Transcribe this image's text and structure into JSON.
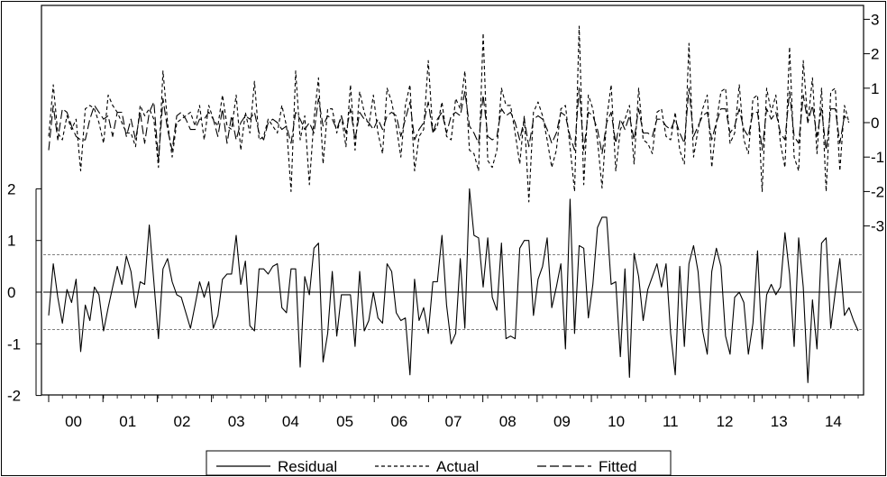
{
  "chart_data": {
    "type": "line",
    "x_tick_labels": [
      "00",
      "01",
      "02",
      "03",
      "04",
      "05",
      "06",
      "07",
      "08",
      "09",
      "10",
      "11",
      "12",
      "13",
      "14"
    ],
    "left_axis": {
      "ticks": [
        -2,
        -1,
        0,
        1,
        2
      ],
      "tick_labels": [
        "-2",
        "-1",
        "0",
        "1",
        "2"
      ],
      "range": [
        -2,
        2.6
      ]
    },
    "right_axis": {
      "ticks": [
        -3,
        -2,
        -1,
        0,
        1,
        2,
        3
      ],
      "tick_labels": [
        "-3",
        "-2",
        "-1",
        "0",
        "1",
        "2",
        "3"
      ],
      "range": [
        -3.5,
        3.0
      ]
    },
    "residual_band": [
      -0.72,
      0.72
    ],
    "legend": {
      "position": "bottom-center",
      "entries": [
        "Residual",
        "Actual",
        "Fitted"
      ]
    },
    "series": [
      {
        "name": "Residual",
        "axis": "left",
        "style": "solid",
        "values": [
          -0.45,
          0.55,
          -0.1,
          -0.6,
          0.05,
          -0.2,
          0.25,
          -1.15,
          -0.25,
          -0.55,
          0.1,
          -0.05,
          -0.75,
          -0.3,
          0.1,
          0.5,
          0.15,
          0.7,
          0.4,
          -0.3,
          0.2,
          0.15,
          1.3,
          0.2,
          -0.9,
          0.45,
          0.65,
          0.2,
          -0.05,
          -0.1,
          -0.4,
          -0.7,
          -0.25,
          0.2,
          -0.1,
          0.2,
          -0.7,
          -0.45,
          0.25,
          0.35,
          0.35,
          1.1,
          0.15,
          0.6,
          -0.65,
          -0.75,
          0.45,
          0.45,
          0.35,
          0.5,
          0.55,
          -0.3,
          -0.4,
          0.45,
          0.45,
          -1.45,
          0.3,
          -0.05,
          0.85,
          0.95,
          -1.35,
          -0.8,
          0.4,
          -0.85,
          -0.05,
          -0.05,
          -0.05,
          -1.05,
          0.4,
          -0.75,
          -0.55,
          0.0,
          -0.5,
          -0.6,
          0.55,
          0.4,
          -0.4,
          -0.55,
          -0.5,
          -1.6,
          0.25,
          -0.55,
          -0.3,
          -0.8,
          0.2,
          0.2,
          1.1,
          -0.25,
          -1.0,
          -0.8,
          0.65,
          -0.7,
          2.0,
          1.1,
          1.05,
          0.1,
          1.05,
          -0.1,
          -0.35,
          0.95,
          -0.9,
          -0.85,
          -0.9,
          0.85,
          1.0,
          1.0,
          -0.45,
          0.25,
          0.5,
          1.05,
          -0.3,
          0.1,
          0.55,
          -1.1,
          1.8,
          -0.8,
          0.9,
          0.85,
          -0.5,
          0.15,
          1.25,
          1.45,
          1.45,
          0.15,
          0.2,
          -1.25,
          0.45,
          -1.65,
          0.75,
          0.3,
          -0.55,
          0.05,
          0.3,
          0.55,
          0.1,
          0.55,
          -0.8,
          -1.6,
          0.5,
          -1.05,
          0.55,
          0.9,
          0.4,
          -0.75,
          -1.2,
          0.4,
          0.85,
          0.5,
          -0.85,
          -1.2,
          -0.1,
          0.0,
          -0.2,
          -1.2,
          -0.6,
          0.8,
          -1.1,
          -0.05,
          0.15,
          -0.05,
          0.1,
          1.15,
          0.35,
          -1.05,
          1.05,
          0.1,
          -1.75,
          -0.15,
          -1.1,
          0.95,
          1.05,
          -0.7,
          0.0,
          0.65,
          -0.45,
          -0.3,
          -0.55,
          -0.75
        ]
      },
      {
        "name": "Actual",
        "axis": "right",
        "style": "short-dash",
        "values": [
          -0.4,
          1.1,
          -0.3,
          -0.5,
          0.2,
          -0.2,
          0.1,
          -1.4,
          0.4,
          0.5,
          0.4,
          0.0,
          -0.6,
          0.8,
          0.5,
          0.3,
          0.0,
          -0.3,
          -0.3,
          -0.7,
          0.5,
          0.2,
          0.4,
          0.1,
          -1.3,
          1.5,
          0.0,
          -1.0,
          0.0,
          0.1,
          0.2,
          0.3,
          -0.1,
          0.5,
          -0.5,
          0.5,
          0.1,
          -0.1,
          0.8,
          -0.1,
          -0.2,
          0.8,
          -0.8,
          0.3,
          -0.3,
          1.2,
          -0.5,
          -0.4,
          0.1,
          -0.1,
          -0.3,
          0.5,
          -0.1,
          -2.0,
          1.5,
          -0.5,
          0.2,
          -1.8,
          0.1,
          1.3,
          -1.2,
          0.4,
          0.4,
          -0.3,
          0.2,
          -0.7,
          1.1,
          -0.8,
          0.9,
          0.3,
          -0.1,
          0.8,
          -0.3,
          -0.9,
          1.0,
          0.6,
          -0.1,
          -1.0,
          0.5,
          1.1,
          -1.4,
          -0.4,
          -0.2,
          1.8,
          -0.3,
          -0.1,
          0.6,
          -0.4,
          -0.5,
          0.7,
          0.4,
          1.5,
          -0.8,
          -0.9,
          -1.4,
          2.6,
          -1.1,
          -1.3,
          -0.8,
          1.0,
          0.5,
          0.5,
          -0.3,
          -1.2,
          0.2,
          -2.3,
          0.3,
          0.6,
          0.2,
          -0.5,
          -1.3,
          -0.8,
          0.4,
          0.5,
          -0.7,
          -2.0,
          2.8,
          -1.8,
          0.8,
          0.4,
          -0.5,
          -1.9,
          0.1,
          1.1,
          -1.4,
          -0.2,
          0.1,
          0.5,
          -1.2,
          1.0,
          -0.5,
          -0.6,
          -0.9,
          0.3,
          0.4,
          -0.4,
          -0.5,
          0.3,
          -0.8,
          -1.2,
          2.3,
          -1.0,
          -0.2,
          0.4,
          0.8,
          -1.3,
          0.0,
          0.9,
          1.0,
          -0.6,
          -0.3,
          1.1,
          -0.5,
          -0.9,
          0.7,
          0.8,
          -2.0,
          1.0,
          0.3,
          0.8,
          -0.6,
          -1.3,
          2.2,
          -1.0,
          -1.4,
          1.8,
          0.0,
          1.3,
          -0.9,
          1.0,
          -2.0,
          0.9,
          1.0,
          -1.4,
          0.5,
          0.0
        ]
      },
      {
        "name": "Fitted",
        "axis": "right",
        "style": "long-dash",
        "values": [
          -0.8,
          0.5,
          -0.5,
          0.4,
          0.3,
          -0.1,
          -0.4,
          -0.5,
          -0.5,
          0.1,
          0.5,
          0.3,
          0.1,
          0.2,
          -0.4,
          0.3,
          0.3,
          -0.4,
          0.1,
          -0.5,
          0.3,
          -0.6,
          0.3,
          0.6,
          -1.1,
          0.7,
          -0.2,
          -0.8,
          0.2,
          0.3,
          0.1,
          -0.2,
          -0.2,
          0.1,
          0.1,
          0.3,
          0.1,
          -0.4,
          0.4,
          -0.6,
          0.2,
          -0.5,
          0.0,
          0.2,
          0.1,
          0.3,
          -0.3,
          -0.5,
          0.0,
          0.1,
          0.0,
          -0.2,
          -0.1,
          -0.6,
          0.3,
          0.1,
          -0.2,
          0.0,
          -0.3,
          0.7,
          -0.1,
          0.2,
          0.1,
          -0.2,
          0.2,
          -0.3,
          0.4,
          -0.5,
          0.3,
          0.1,
          0.0,
          -0.2,
          0.1,
          -0.2,
          0.2,
          0.3,
          0.2,
          -0.4,
          0.1,
          0.6,
          -0.5,
          -0.2,
          0.0,
          0.6,
          -0.3,
          0.1,
          0.3,
          -0.3,
          0.2,
          0.3,
          0.2,
          0.9,
          -0.1,
          -0.3,
          -0.6,
          0.8,
          -0.4,
          -0.5,
          -0.4,
          0.4,
          0.2,
          0.3,
          0.0,
          -0.5,
          0.1,
          -0.7,
          0.1,
          0.2,
          0.1,
          -0.2,
          -0.6,
          -0.3,
          0.3,
          0.2,
          -0.4,
          -0.8,
          1.0,
          -0.8,
          0.3,
          0.2,
          -0.2,
          -0.9,
          0.0,
          0.3,
          -0.6,
          0.1,
          -0.2,
          0.2,
          -0.5,
          0.4,
          -0.3,
          -0.3,
          -0.4,
          0.1,
          0.1,
          -0.1,
          -0.2,
          0.1,
          -0.3,
          -0.6,
          1.0,
          -0.4,
          -0.1,
          0.2,
          0.3,
          -0.5,
          0.0,
          0.4,
          0.4,
          -0.3,
          -0.1,
          0.4,
          -0.2,
          -0.4,
          0.3,
          0.3,
          -0.8,
          0.4,
          0.1,
          0.3,
          -0.3,
          -0.5,
          0.9,
          -0.4,
          -0.6,
          0.8,
          0.0,
          0.5,
          -0.4,
          0.4,
          -0.8,
          0.4,
          0.4,
          -0.6,
          0.2,
          0.0
        ]
      }
    ]
  }
}
